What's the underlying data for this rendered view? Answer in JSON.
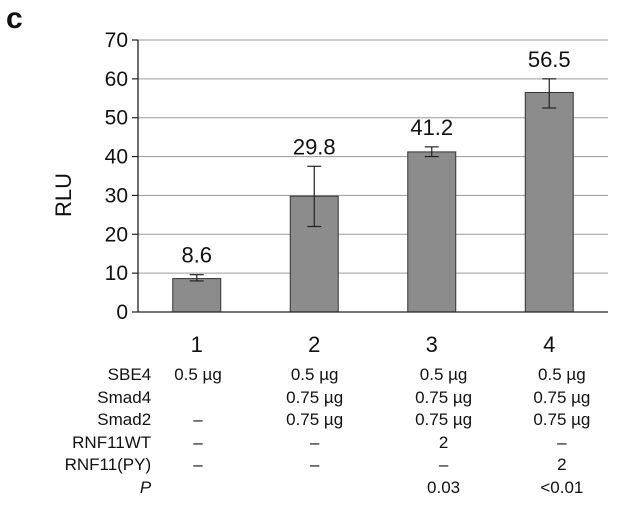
{
  "panel_label": "c",
  "chart_data": {
    "type": "bar",
    "ylabel": "RLU",
    "xlabel": "",
    "ylim": [
      0,
      70
    ],
    "yticks": [
      0,
      10,
      20,
      30,
      40,
      50,
      60,
      70
    ],
    "grid": true,
    "categories": [
      "1",
      "2",
      "3",
      "4"
    ],
    "values": [
      8.6,
      29.8,
      41.2,
      56.5
    ],
    "value_labels": [
      "8.6",
      "29.8",
      "41.2",
      "56.5"
    ],
    "error_low": [
      8.0,
      22.0,
      40.0,
      52.5
    ],
    "error_high": [
      9.6,
      37.5,
      42.5,
      60.0
    ],
    "bar_color": "#8c8c8c"
  },
  "conditions": [
    {
      "label": "SBE4",
      "italic": false,
      "values": [
        "0.5 µg",
        "0.5 µg",
        "0.5 µg",
        "0.5 µg"
      ]
    },
    {
      "label": "Smad4",
      "italic": false,
      "values": [
        "",
        "0.75 µg",
        "0.75 µg",
        "0.75 µg"
      ]
    },
    {
      "label": "Smad2",
      "italic": false,
      "values": [
        "–",
        "0.75 µg",
        "0.75 µg",
        "0.75 µg"
      ]
    },
    {
      "label": "RNF11WT",
      "italic": false,
      "values": [
        "–",
        "–",
        "2",
        "–"
      ]
    },
    {
      "label": "RNF11(PY)",
      "italic": false,
      "values": [
        "–",
        "–",
        "–",
        "2"
      ]
    },
    {
      "label": "P",
      "italic": true,
      "values": [
        "",
        "",
        "0.03",
        "<0.01"
      ]
    }
  ]
}
